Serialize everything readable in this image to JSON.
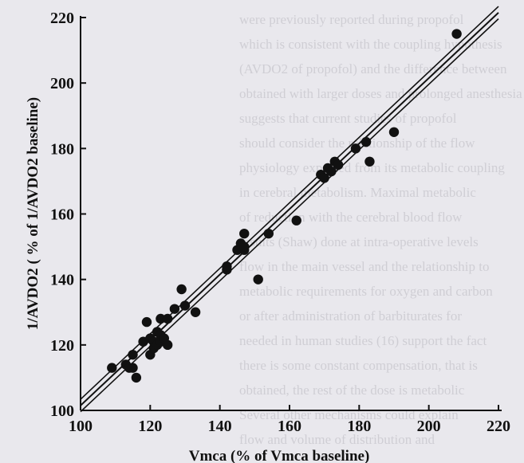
{
  "chart_data": {
    "type": "scatter",
    "title": "",
    "xlabel": "Vmca (% of Vmca baseline)",
    "ylabel": "1/AVDO2 ( % of 1/AVDO2 baseline)",
    "xlim": [
      100,
      220
    ],
    "ylim": [
      100,
      220
    ],
    "xticks": [
      "100",
      "120",
      "140",
      "160",
      "180",
      "200",
      "220"
    ],
    "yticks": [
      "100",
      "120",
      "140",
      "160",
      "180",
      "200",
      "220"
    ],
    "grid": false,
    "legend": "none",
    "point_style": "filled-circle",
    "colors": {
      "points": "#111111",
      "lines": "#111111",
      "background": "#e9e8ed"
    },
    "points": [
      [
        109,
        113
      ],
      [
        113,
        114
      ],
      [
        114,
        113
      ],
      [
        115,
        117
      ],
      [
        115,
        113
      ],
      [
        116,
        110
      ],
      [
        118,
        121
      ],
      [
        119,
        127
      ],
      [
        120,
        122
      ],
      [
        120,
        117
      ],
      [
        121,
        121
      ],
      [
        121,
        119
      ],
      [
        122,
        124
      ],
      [
        122,
        120
      ],
      [
        123,
        123
      ],
      [
        123,
        121
      ],
      [
        123,
        128
      ],
      [
        124,
        122
      ],
      [
        125,
        128
      ],
      [
        125,
        120
      ],
      [
        127,
        131
      ],
      [
        129,
        137
      ],
      [
        130,
        132
      ],
      [
        133,
        130
      ],
      [
        142,
        143
      ],
      [
        142,
        144
      ],
      [
        145,
        149
      ],
      [
        146,
        151
      ],
      [
        147,
        154
      ],
      [
        147,
        149
      ],
      [
        147,
        150
      ],
      [
        151,
        140
      ],
      [
        154,
        154
      ],
      [
        162,
        158
      ],
      [
        169,
        172
      ],
      [
        170,
        171
      ],
      [
        171,
        174
      ],
      [
        172,
        173
      ],
      [
        173,
        176
      ],
      [
        174,
        175
      ],
      [
        179,
        180
      ],
      [
        182,
        182
      ],
      [
        183,
        176
      ],
      [
        190,
        185
      ],
      [
        208,
        215
      ]
    ],
    "lines": [
      {
        "x": [
          100,
          220
        ],
        "y": [
          101.5,
          221.5
        ]
      },
      {
        "x": [
          100,
          220
        ],
        "y": [
          103.4,
          223.4
        ]
      },
      {
        "x": [
          100,
          220
        ],
        "y": [
          99.6,
          219.6
        ]
      }
    ]
  },
  "background_text": [
    "were previously reported during propofol",
    "which is consistent with the coupling hypothesis",
    "(AVDO2 of propofol) and the difference between",
    "obtained with larger doses and prolonged anesthesia",
    "suggests that current studies of propofol",
    "should consider the relationship of the flow",
    "physiology expected from its metabolic coupling",
    "in cerebral metabolism. Maximal metabolic",
    "of reduction with the cerebral blood flow",
    "results (Shaw) done at intra-operative levels",
    "flow in the main vessel and the relationship to",
    "metabolic requirements for oxygen and carbon",
    "or after administration of barbiturates for",
    "needed in human studies (16) support the fact",
    "there is some constant compensation, that is",
    "obtained, the rest of the dose is metabolic",
    "Several other mechanisms could explain",
    "flow and volume of distribution and"
  ]
}
